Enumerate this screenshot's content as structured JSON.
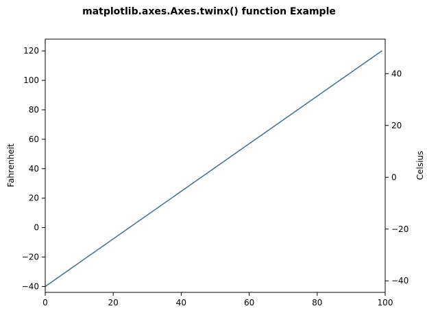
{
  "chart_data": {
    "type": "line",
    "title": "matplotlib.axes.Axes.twinx() function Example",
    "xlabel": "",
    "ylabel": "Fahrenheit",
    "y2label": "Celsius",
    "xlim": [
      0,
      100
    ],
    "ylim": [
      -44,
      128
    ],
    "y2lim": [
      -44.444,
      53.333
    ],
    "x_ticks": [
      0,
      20,
      40,
      60,
      80,
      100
    ],
    "y_ticks": [
      -40,
      -20,
      0,
      20,
      40,
      60,
      80,
      100,
      120
    ],
    "y2_ticks": [
      -40,
      -20,
      0,
      20,
      40
    ],
    "grid": false,
    "series": [
      {
        "x": [
          0,
          99
        ],
        "y": [
          -40,
          120
        ],
        "color": "#4f7592"
      }
    ]
  }
}
